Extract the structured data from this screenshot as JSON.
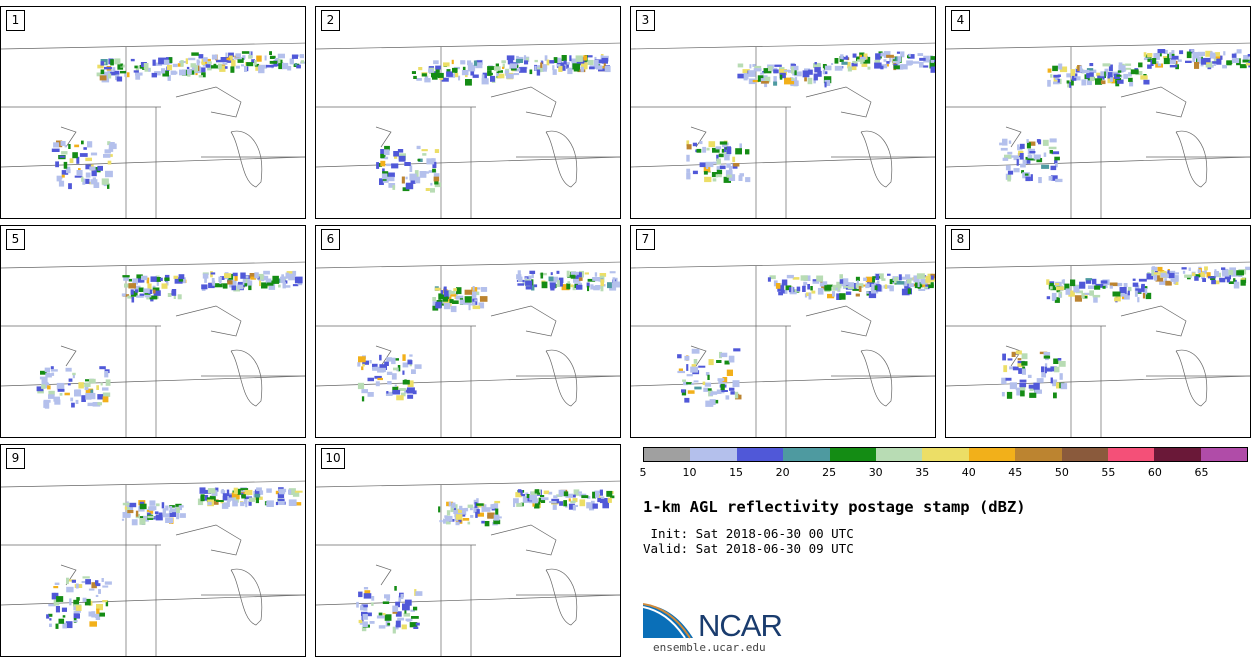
{
  "panels": [
    {
      "label": "1"
    },
    {
      "label": "2"
    },
    {
      "label": "3"
    },
    {
      "label": "4"
    },
    {
      "label": "5"
    },
    {
      "label": "6"
    },
    {
      "label": "7"
    },
    {
      "label": "8"
    },
    {
      "label": "9"
    },
    {
      "label": "10"
    }
  ],
  "colorbar": {
    "ticks": [
      "5",
      "10",
      "15",
      "20",
      "25",
      "30",
      "35",
      "40",
      "45",
      "50",
      "55",
      "60",
      "65"
    ],
    "colors": [
      "#a0a0a0",
      "#b4c0ec",
      "#5058d8",
      "#4e9aa0",
      "#148c14",
      "#b8dcb4",
      "#ecde66",
      "#f2b01a",
      "#bc8430",
      "#8a5a3c",
      "#f45078",
      "#6a1838",
      "#b04ca8"
    ]
  },
  "title": "1-km AGL reflectivity postage stamp (dBZ)",
  "init": " Init: Sat 2018-06-30 00 UTC",
  "valid": "Valid: Sat 2018-06-30 09 UTC",
  "logo": {
    "text": "NCAR",
    "url": "ensemble.ucar.edu"
  },
  "map_layers": [
    "state-borders",
    "great-lakes",
    "radar-reflectivity"
  ]
}
